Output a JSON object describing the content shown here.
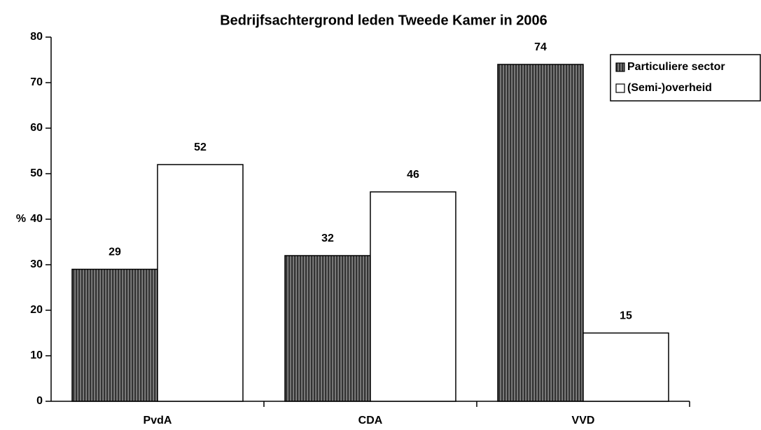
{
  "chart_data": {
    "type": "bar",
    "title": "Bedrijfsachtergrond leden Tweede Kamer in 2006",
    "y_label": "%",
    "categories": [
      "PvdA",
      "CDA",
      "VVD"
    ],
    "series": [
      {
        "name": "Particuliere sector",
        "color": "#333333",
        "values": [
          29,
          32,
          74
        ]
      },
      {
        "name": "(Semi-)overheid",
        "color": "#ffffff",
        "values": [
          52,
          46,
          15
        ]
      }
    ],
    "ylim": [
      0,
      80
    ],
    "yticks": [
      0,
      10,
      20,
      30,
      40,
      50,
      60,
      70,
      80
    ],
    "legend": "top-right"
  }
}
